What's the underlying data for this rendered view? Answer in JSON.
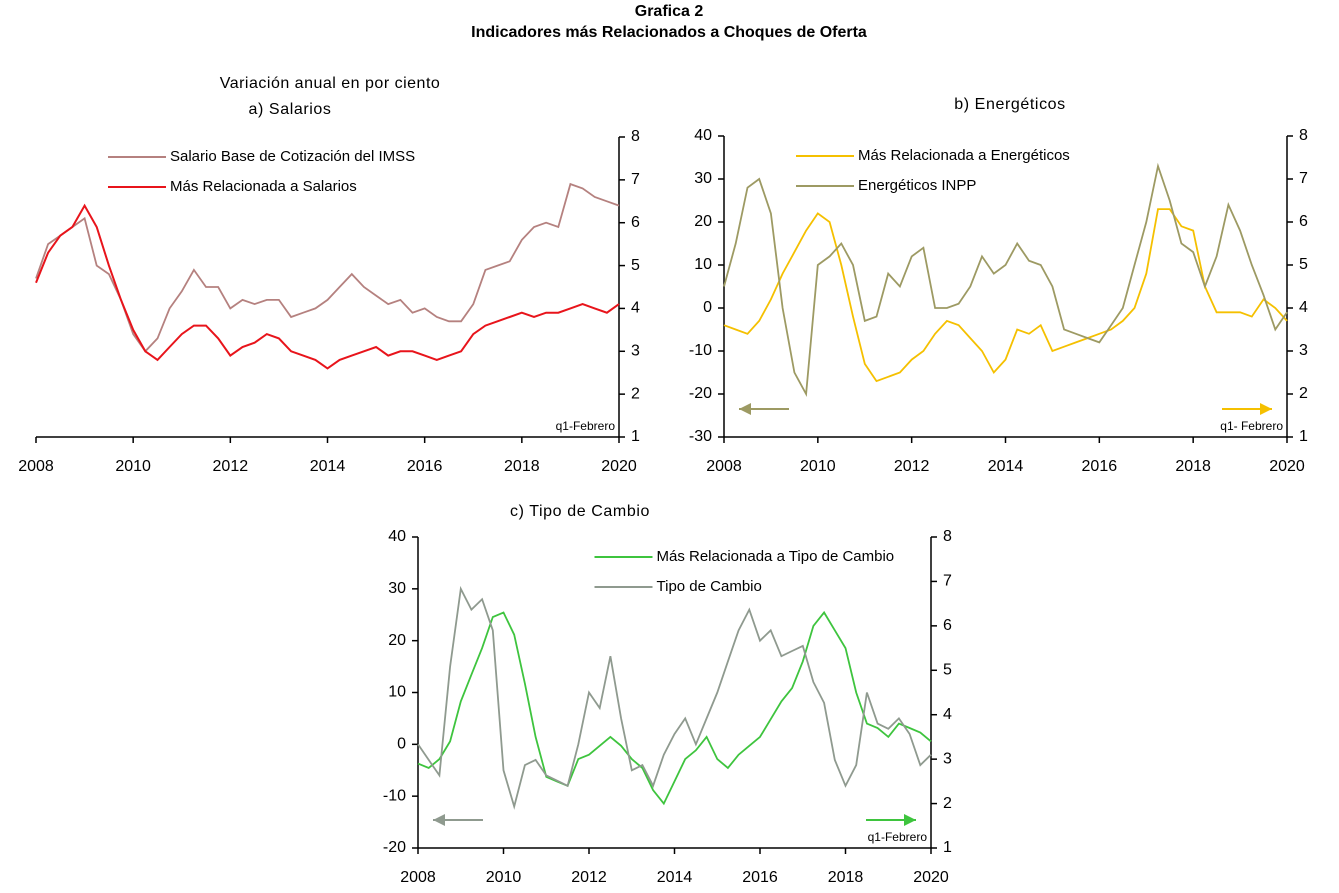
{
  "title": "Grafica 2",
  "subtitle": "Indicadores más Relacionados a Choques de Oferta",
  "note": "Variación anual en por ciento",
  "chart_data": [
    {
      "type": "line",
      "title": "a) Salarios",
      "annotation": "q1-Febrero",
      "legend": "upper left",
      "x": [
        2008,
        2008.25,
        2008.5,
        2008.75,
        2009,
        2009.25,
        2009.5,
        2009.75,
        2010,
        2010.25,
        2010.5,
        2010.75,
        2011,
        2011.25,
        2011.5,
        2011.75,
        2012,
        2012.25,
        2012.5,
        2012.75,
        2013,
        2013.25,
        2013.5,
        2013.75,
        2014,
        2014.25,
        2014.5,
        2014.75,
        2015,
        2015.25,
        2015.5,
        2015.75,
        2016,
        2016.25,
        2016.5,
        2016.75,
        2017,
        2017.25,
        2017.5,
        2017.75,
        2018,
        2018.25,
        2018.5,
        2018.75,
        2019,
        2019.25,
        2019.5,
        2019.75,
        2020
      ],
      "xlim": [
        2008,
        2020
      ],
      "xticks": [
        2008,
        2010,
        2012,
        2014,
        2016,
        2018,
        2020
      ],
      "y2lim": [
        1,
        8
      ],
      "y2ticks": [
        1,
        2,
        3,
        4,
        5,
        6,
        7,
        8
      ],
      "series": [
        {
          "name": "Salario Base de Cotización del IMSS",
          "color": "#b5817f",
          "axis": "y2",
          "values": [
            4.7,
            5.5,
            5.7,
            5.9,
            6.1,
            5.0,
            4.8,
            4.2,
            3.4,
            3.0,
            3.3,
            4.0,
            4.4,
            4.9,
            4.5,
            4.5,
            4.0,
            4.2,
            4.1,
            4.2,
            4.2,
            3.8,
            3.9,
            4.0,
            4.2,
            4.5,
            4.8,
            4.5,
            4.3,
            4.1,
            4.2,
            3.9,
            4.0,
            3.8,
            3.7,
            3.7,
            4.1,
            4.9,
            5.0,
            5.1,
            5.6,
            5.9,
            6.0,
            5.9,
            6.9,
            6.8,
            6.6,
            6.5,
            6.4
          ]
        },
        {
          "name": "Más Relacionada a Salarios",
          "color": "#e8141b",
          "axis": "y2",
          "values": [
            4.6,
            5.3,
            5.7,
            5.9,
            6.4,
            5.9,
            5.0,
            4.2,
            3.5,
            3.0,
            2.8,
            3.1,
            3.4,
            3.6,
            3.6,
            3.3,
            2.9,
            3.1,
            3.2,
            3.4,
            3.3,
            3.0,
            2.9,
            2.8,
            2.6,
            2.8,
            2.9,
            3.0,
            3.1,
            2.9,
            3.0,
            3.0,
            2.9,
            2.8,
            2.9,
            3.0,
            3.4,
            3.6,
            3.7,
            3.8,
            3.9,
            3.8,
            3.9,
            3.9,
            4.0,
            4.1,
            4.0,
            3.9,
            4.1
          ]
        }
      ]
    },
    {
      "type": "line",
      "title": "b) Energéticos",
      "annotation": "q1- Febrero",
      "legend": "upper left",
      "x": [
        2008,
        2008.25,
        2008.5,
        2008.75,
        2009,
        2009.25,
        2009.5,
        2009.75,
        2010,
        2010.25,
        2010.5,
        2010.75,
        2011,
        2011.25,
        2011.5,
        2011.75,
        2012,
        2012.25,
        2012.5,
        2012.75,
        2013,
        2013.25,
        2013.5,
        2013.75,
        2014,
        2014.25,
        2014.5,
        2014.75,
        2015,
        2015.25,
        2015.5,
        2015.75,
        2016,
        2016.25,
        2016.5,
        2016.75,
        2017,
        2017.25,
        2017.5,
        2017.75,
        2018,
        2018.25,
        2018.5,
        2018.75,
        2019,
        2019.25,
        2019.5,
        2019.75,
        2020
      ],
      "xlim": [
        2008,
        2020
      ],
      "xticks": [
        2008,
        2010,
        2012,
        2014,
        2016,
        2018,
        2020
      ],
      "ylim": [
        -30,
        40
      ],
      "yticks": [
        -30,
        -20,
        -10,
        0,
        10,
        20,
        30,
        40
      ],
      "y2lim": [
        1,
        8
      ],
      "y2ticks": [
        1,
        2,
        3,
        4,
        5,
        6,
        7,
        8
      ],
      "series": [
        {
          "name": "Más Relacionada a Energéticos",
          "color": "#f5c000",
          "axis": "y2",
          "values": [
            3.6,
            3.5,
            3.4,
            3.7,
            4.2,
            4.8,
            5.3,
            5.8,
            6.2,
            6.0,
            5.0,
            3.8,
            2.7,
            2.3,
            2.4,
            2.5,
            2.8,
            3.0,
            3.4,
            3.7,
            3.6,
            3.3,
            3.0,
            2.5,
            2.8,
            3.5,
            3.4,
            3.6,
            3.0,
            3.1,
            3.2,
            3.3,
            3.4,
            3.5,
            3.7,
            4.0,
            4.8,
            6.3,
            6.3,
            5.9,
            5.8,
            4.5,
            3.9,
            3.9,
            3.9,
            3.8,
            4.2,
            4.0,
            3.7
          ]
        },
        {
          "name": "Energéticos INPP",
          "color": "#9d9a63",
          "values": [
            5,
            15,
            28,
            30,
            22,
            0,
            -15,
            -20,
            10,
            12,
            15,
            10,
            -3,
            -2,
            8,
            5,
            12,
            14,
            0,
            0,
            1,
            5,
            12,
            8,
            10,
            15,
            11,
            10,
            5,
            -5,
            -6,
            -7,
            -8,
            -4,
            0,
            10,
            20,
            33,
            25,
            15,
            13,
            5,
            12,
            24,
            18,
            10,
            3,
            -5,
            -1
          ]
        }
      ]
    },
    {
      "type": "line",
      "title": "c) Tipo de Cambio",
      "annotation": "q1-Febrero",
      "legend": "upper center",
      "x": [
        2008,
        2008.25,
        2008.5,
        2008.75,
        2009,
        2009.25,
        2009.5,
        2009.75,
        2010,
        2010.25,
        2010.5,
        2010.75,
        2011,
        2011.25,
        2011.5,
        2011.75,
        2012,
        2012.25,
        2012.5,
        2012.75,
        2013,
        2013.25,
        2013.5,
        2013.75,
        2014,
        2014.25,
        2014.5,
        2014.75,
        2015,
        2015.25,
        2015.5,
        2015.75,
        2016,
        2016.25,
        2016.5,
        2016.75,
        2017,
        2017.25,
        2017.5,
        2017.75,
        2018,
        2018.25,
        2018.5,
        2018.75,
        2019,
        2019.25,
        2019.5,
        2019.75,
        2020
      ],
      "xlim": [
        2008,
        2020
      ],
      "xticks": [
        2008,
        2010,
        2012,
        2014,
        2016,
        2018,
        2020
      ],
      "ylim": [
        -20,
        40
      ],
      "yticks": [
        -20,
        -10,
        0,
        10,
        20,
        30,
        40
      ],
      "y2lim": [
        1,
        8
      ],
      "y2ticks": [
        1,
        2,
        3,
        4,
        5,
        6,
        7,
        8
      ],
      "series": [
        {
          "name": "Más Relacionada a Tipo de Cambio",
          "color": "#3ec43e",
          "axis": "y2",
          "values": [
            2.9,
            2.8,
            3.0,
            3.4,
            4.3,
            4.9,
            5.5,
            6.2,
            6.3,
            5.8,
            4.7,
            3.5,
            2.6,
            2.5,
            2.4,
            3.0,
            3.1,
            3.3,
            3.5,
            3.3,
            3.0,
            2.8,
            2.3,
            2.0,
            2.5,
            3.0,
            3.2,
            3.5,
            3.0,
            2.8,
            3.1,
            3.3,
            3.5,
            3.9,
            4.3,
            4.6,
            5.2,
            6.0,
            6.3,
            5.9,
            5.5,
            4.5,
            3.8,
            3.7,
            3.5,
            3.8,
            3.7,
            3.6,
            3.4
          ]
        },
        {
          "name": "Tipo de Cambio",
          "color": "#8f9a8f",
          "values": [
            0,
            -3,
            -6,
            15,
            30,
            26,
            28,
            22,
            -5,
            -12,
            -4,
            -3,
            -6,
            -7,
            -8,
            0,
            10,
            7,
            17,
            5,
            -5,
            -4,
            -8,
            -2,
            2,
            5,
            0,
            5,
            10,
            16,
            22,
            26,
            20,
            22,
            17,
            18,
            19,
            12,
            8,
            -3,
            -8,
            -4,
            10,
            4,
            3,
            5,
            2,
            -4,
            -2
          ]
        }
      ]
    }
  ]
}
